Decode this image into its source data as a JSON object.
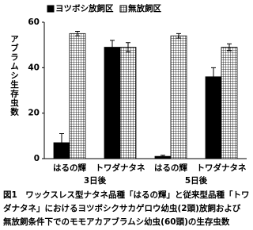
{
  "chart_data": {
    "type": "bar",
    "ylabel": "アブラムシ生存虫数",
    "categories": [
      "はるの輝",
      "トワダナタネ",
      "はるの輝",
      "トワダナタネ"
    ],
    "groups": [
      "3日後",
      "5日後"
    ],
    "series": [
      {
        "name": "ヨツボシ放飼区",
        "color": "#000000",
        "pattern": "solid",
        "values": [
          7,
          49,
          1,
          36
        ],
        "errors": [
          4,
          3,
          0.5,
          4
        ]
      },
      {
        "name": "無放飼区",
        "color": "#000000",
        "pattern": "grid",
        "values": [
          55,
          49,
          54,
          49
        ],
        "errors": [
          1,
          2,
          1,
          1.5
        ]
      }
    ],
    "ylim": [
      0,
      60
    ],
    "yticks": [
      0,
      20,
      40,
      60
    ],
    "grid": false,
    "caption": [
      "図1　ワックスレス型ナタネ品種「はるの輝」と従来型品種「トワ",
      "ダナタネ」におけるヨツボシクサカゲロウ幼虫(2頭)放飼および",
      "無放飼条件下でのモモアカアブラムシ幼虫(60頭)の生存虫数"
    ]
  }
}
